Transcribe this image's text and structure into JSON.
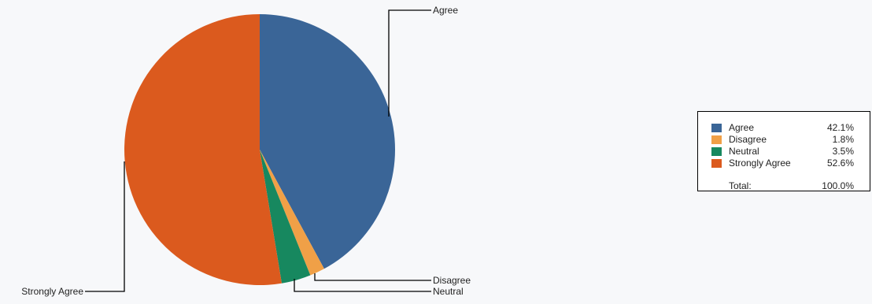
{
  "chart_data": {
    "type": "pie",
    "categories": [
      "Agree",
      "Disagree",
      "Neutral",
      "Strongly Agree"
    ],
    "values": [
      42.1,
      1.8,
      3.5,
      52.6
    ],
    "colors": [
      "#3a6597",
      "#f0a047",
      "#17885f",
      "#db5a1e"
    ],
    "percent_labels": [
      "42.1%",
      "1.8%",
      "3.5%",
      "52.6%"
    ],
    "title": "",
    "legend_position": "right"
  },
  "legend": {
    "total_label": "Total:",
    "total_value": "100.0%"
  }
}
